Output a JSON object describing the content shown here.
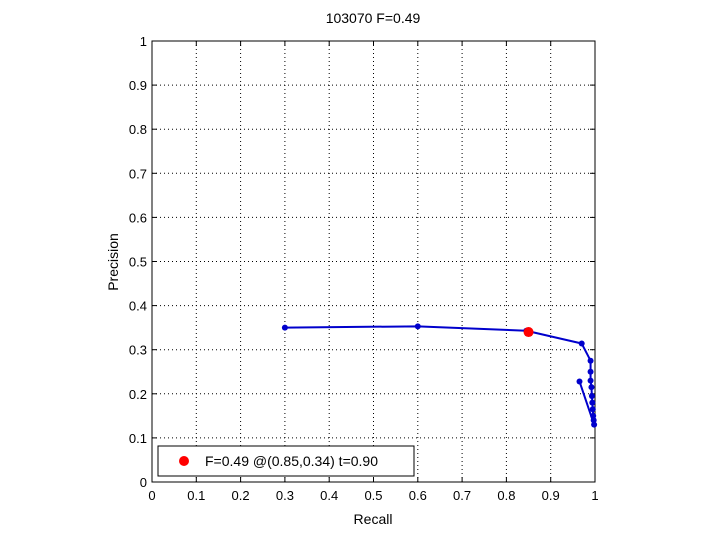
{
  "chart_data": {
    "type": "line",
    "title": "103070 F=0.49",
    "xlabel": "Recall",
    "ylabel": "Precision",
    "xlim": [
      0,
      1
    ],
    "ylim": [
      0,
      1
    ],
    "xticks": [
      "0",
      "0.1",
      "0.2",
      "0.3",
      "0.4",
      "0.5",
      "0.6",
      "0.7",
      "0.8",
      "0.9",
      "1"
    ],
    "yticks": [
      "0",
      "0.1",
      "0.2",
      "0.3",
      "0.4",
      "0.5",
      "0.6",
      "0.7",
      "0.8",
      "0.9",
      "1"
    ],
    "grid": true,
    "legend_position": "bottom-left",
    "colors": {
      "series": "#0000cc",
      "best": "#ff0000"
    },
    "series": [
      {
        "points": [
          [
            0.3,
            0.35
          ],
          [
            0.6,
            0.353
          ],
          [
            0.845,
            0.343
          ],
          [
            0.97,
            0.314
          ],
          [
            0.99,
            0.275
          ],
          [
            0.99,
            0.25
          ],
          [
            0.99,
            0.23
          ],
          [
            0.992,
            0.215
          ],
          [
            0.993,
            0.195
          ],
          [
            0.994,
            0.18
          ],
          [
            0.995,
            0.165
          ],
          [
            0.996,
            0.15
          ],
          [
            0.997,
            0.14
          ],
          [
            0.998,
            0.13
          ],
          [
            0.965,
            0.228
          ]
        ]
      }
    ],
    "best_point": {
      "x": 0.85,
      "y": 0.34
    },
    "legend_label": "F=0.49 @(0.85,0.34) t=0.90"
  }
}
